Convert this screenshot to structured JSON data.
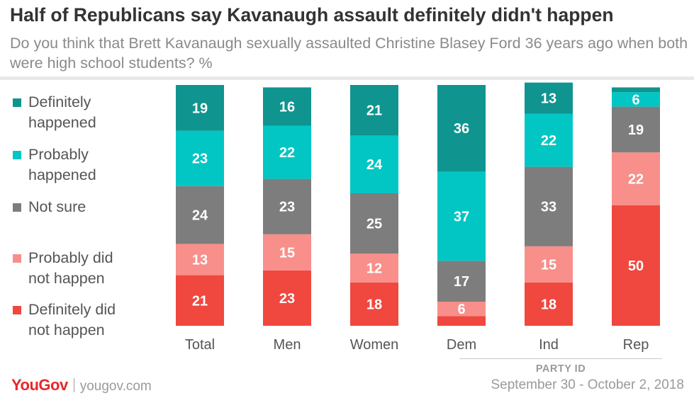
{
  "chart_data": {
    "type": "bar",
    "stacked": true,
    "title": "Half of Republicans say Kavanaugh assault definitely didn't happen",
    "subtitle": "Do you think that Brett Kavanaugh sexually assaulted Christine Blasey Ford 36 years ago when both were high school students? %",
    "categories": [
      "Total",
      "Men",
      "Women",
      "Dem",
      "Ind",
      "Rep"
    ],
    "series": [
      {
        "name": "Definitely happened",
        "color": "#10948f",
        "values": [
          19,
          16,
          21,
          36,
          13,
          2
        ]
      },
      {
        "name": "Probably happened",
        "color": "#01c6c4",
        "values": [
          23,
          22,
          24,
          37,
          22,
          6
        ]
      },
      {
        "name": "Not sure",
        "color": "#7d7d7d",
        "values": [
          24,
          23,
          25,
          17,
          33,
          19
        ]
      },
      {
        "name": "Probably did not happen",
        "color": "#f88f8a",
        "values": [
          13,
          15,
          12,
          6,
          15,
          22
        ]
      },
      {
        "name": "Definitely did not happen",
        "color": "#f0473f",
        "values": [
          21,
          23,
          18,
          4,
          18,
          50
        ]
      }
    ],
    "labels": [
      [
        "19",
        "16",
        "21",
        "36",
        "13",
        ""
      ],
      [
        "23",
        "22",
        "24",
        "37",
        "22",
        "6"
      ],
      [
        "24",
        "23",
        "25",
        "17",
        "33",
        "19"
      ],
      [
        "13",
        "15",
        "12",
        "6",
        "15",
        "22"
      ],
      [
        "21",
        "23",
        "18",
        "",
        "18",
        "50"
      ]
    ],
    "legend": [
      {
        "line1": "Definitely",
        "line2": "happened",
        "color": "#10948f"
      },
      {
        "line1": "Probably",
        "line2": "happened",
        "color": "#01c6c4"
      },
      {
        "line1": "Not sure",
        "line2": "",
        "color": "#7d7d7d"
      },
      {
        "line1": "Probably did",
        "line2": "not happen",
        "color": "#f88f8a"
      },
      {
        "line1": "Definitely did",
        "line2": "not happen",
        "color": "#f0473f"
      }
    ],
    "group_label": "PARTY ID",
    "unit": "%"
  },
  "footer": {
    "brand": "YouGov",
    "url": "yougov.com",
    "date": "September 30 - October 2, 2018"
  }
}
